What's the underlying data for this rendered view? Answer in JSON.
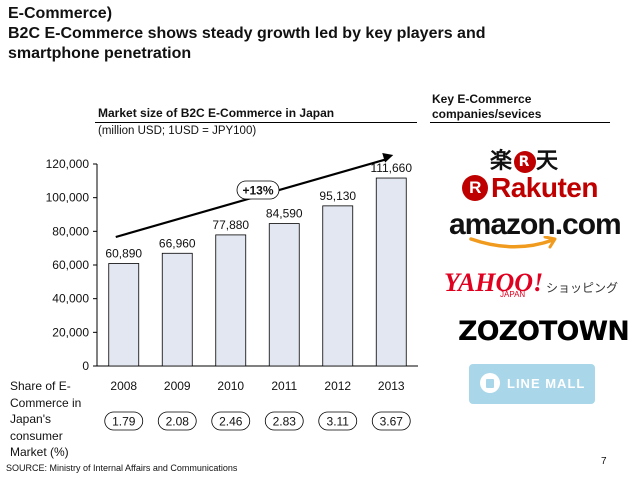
{
  "title": "E-Commerce)\nB2C E-Commerce shows steady growth led by key players and smartphone penetration",
  "key_panel": {
    "title": "Key E-Commerce companies/sevices",
    "logos": {
      "rakuten_kanji": "楽天",
      "rakuten_r": "R",
      "rakuten": "Rakuten",
      "amazon": "amazon.com",
      "yahoo": "YAHOO!",
      "yahoo_japan": "JAPAN",
      "yahoo_shopping": "ショッピング",
      "zozotown": "ZOZOTOWN",
      "line_mall": "LINE MALL"
    }
  },
  "chart_data": {
    "type": "bar",
    "title": "Market size of B2C E-Commerce in Japan",
    "subtitle": "(million USD; 1USD = JPY100)",
    "categories": [
      "2008",
      "2009",
      "2010",
      "2011",
      "2012",
      "2013"
    ],
    "values": [
      60890,
      66960,
      77880,
      84590,
      95130,
      111660
    ],
    "value_labels": [
      "60,890",
      "66,960",
      "77,880",
      "84,590",
      "95,130",
      "111,660"
    ],
    "ylim": [
      0,
      120000
    ],
    "yticks": [
      0,
      20000,
      40000,
      60000,
      80000,
      100000,
      120000
    ],
    "ytick_labels": [
      "0",
      "20,000",
      "40,000",
      "60,000",
      "80,000",
      "100,000",
      "120,000"
    ],
    "annotation": "+13%",
    "bar_color": "#e3e7f1",
    "share_row": {
      "label": "Share of E-Commerce in Japan's consumer Market (%)",
      "values": [
        "1.79",
        "2.08",
        "2.46",
        "2.83",
        "3.11",
        "3.67"
      ]
    }
  },
  "source": "SOURCE: Ministry of Internal Affairs and Communications",
  "page_number": "7"
}
